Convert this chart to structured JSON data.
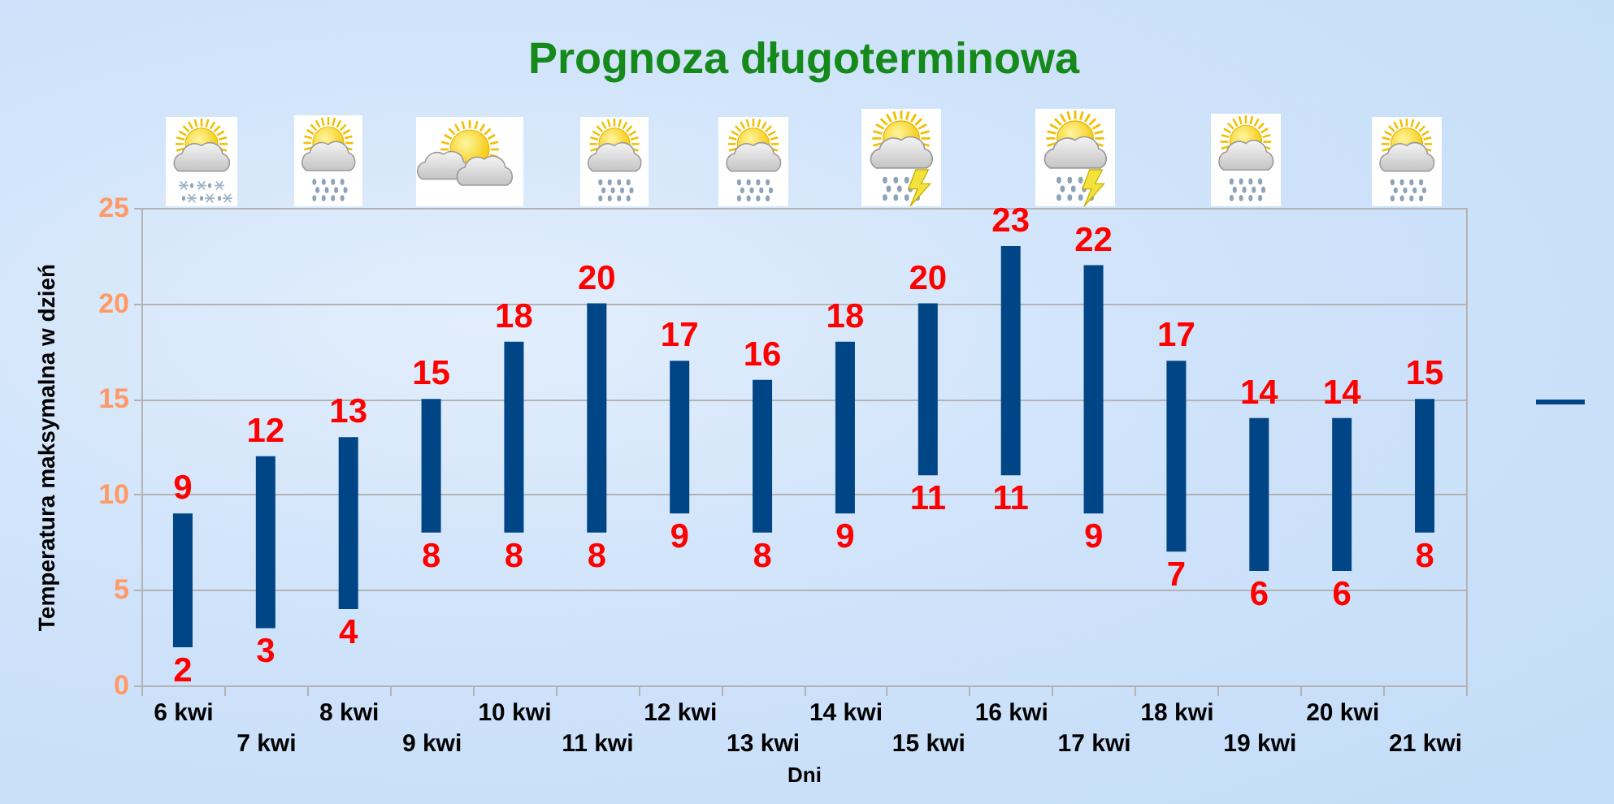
{
  "chart_data": {
    "type": "bar",
    "title": "Prognoza długoterminowa",
    "xlabel": "Dni",
    "ylabel": "Temperatura maksymalna w dzień",
    "categories": [
      "6 kwi",
      "7 kwi",
      "8 kwi",
      "9 kwi",
      "10 kwi",
      "11 kwi",
      "12 kwi",
      "13 kwi",
      "14 kwi",
      "15 kwi",
      "16 kwi",
      "17 kwi",
      "18 kwi",
      "19 kwi",
      "20 kwi",
      "21 kwi"
    ],
    "base": [
      2,
      3,
      4,
      8,
      8,
      8,
      9,
      8,
      9,
      11,
      11,
      9,
      7,
      6,
      6,
      8
    ],
    "values": [
      7,
      9,
      9,
      7,
      10,
      12,
      8,
      8,
      9,
      9,
      12,
      13,
      10,
      8,
      8,
      7
    ],
    "value_labels": [
      "9",
      "12",
      "13",
      "15",
      "18",
      "20",
      "17",
      "16",
      "18",
      "20",
      "23",
      "22",
      "17",
      "14",
      "14",
      "15"
    ],
    "color": "#004586",
    "annotations": [
      {
        "text": "2",
        "x": "6 kwi",
        "y": 2
      },
      {
        "text": "3",
        "x": "7 kwi",
        "y": 3
      },
      {
        "text": "4",
        "x": "8 kwi",
        "y": 4
      },
      {
        "text": "8",
        "x": "9 kwi",
        "y": 8
      },
      {
        "text": "8",
        "x": "10 kwi",
        "y": 8
      },
      {
        "text": "8",
        "x": "11 kwi",
        "y": 8
      },
      {
        "text": "9",
        "x": "12 kwi",
        "y": 9
      },
      {
        "text": "8",
        "x": "13 kwi",
        "y": 8
      },
      {
        "text": "9",
        "x": "14 kwi",
        "y": 9
      },
      {
        "text": "11",
        "x": "15 kwi",
        "y": 11
      },
      {
        "text": "11",
        "x": "16 kwi",
        "y": 11
      },
      {
        "text": "9",
        "x": "17 kwi",
        "y": 9
      },
      {
        "text": "7",
        "x": "18 kwi",
        "y": 7
      },
      {
        "text": "6",
        "x": "19 kwi",
        "y": 6
      },
      {
        "text": "6",
        "x": "20 kwi",
        "y": 6
      },
      {
        "text": "8",
        "x": "21 kwi",
        "y": 8
      }
    ],
    "ylim": [
      0,
      25
    ],
    "yticks": [
      0,
      5,
      10,
      15,
      20,
      25
    ],
    "grid": "y"
  }
}
